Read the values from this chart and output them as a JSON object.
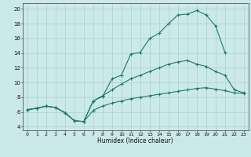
{
  "xlabel": "Humidex (Indice chaleur)",
  "bg_color": "#cce9e9",
  "line_color": "#1a7a6e",
  "xlim": [
    -0.5,
    23.5
  ],
  "ylim": [
    3.5,
    20.8
  ],
  "xticks": [
    0,
    1,
    2,
    3,
    4,
    5,
    6,
    7,
    8,
    9,
    10,
    11,
    12,
    13,
    14,
    15,
    16,
    17,
    18,
    19,
    20,
    21,
    22,
    23
  ],
  "yticks": [
    4,
    6,
    8,
    10,
    12,
    14,
    16,
    18,
    20
  ],
  "curve1_x": [
    0,
    1,
    2,
    3,
    4,
    5,
    6,
    7,
    8,
    9,
    10,
    11,
    12,
    13,
    14,
    15,
    16,
    17,
    18,
    19,
    20,
    21
  ],
  "curve1_y": [
    6.3,
    6.5,
    6.8,
    6.6,
    5.9,
    4.8,
    4.7,
    7.5,
    8.1,
    10.5,
    11.0,
    13.9,
    14.1,
    16.0,
    16.7,
    18.0,
    19.2,
    19.3,
    19.8,
    19.2,
    17.7,
    14.1
  ],
  "curve2_x": [
    0,
    1,
    2,
    3,
    4,
    5,
    6,
    7,
    8,
    9,
    10,
    11,
    12,
    13,
    14,
    15,
    16,
    17,
    18,
    19,
    20,
    21,
    22,
    23
  ],
  "curve2_y": [
    6.3,
    6.5,
    6.8,
    6.6,
    5.9,
    4.8,
    4.7,
    7.5,
    8.2,
    9.0,
    9.8,
    10.5,
    11.0,
    11.5,
    12.0,
    12.5,
    12.8,
    13.0,
    12.5,
    12.2,
    11.5,
    11.0,
    9.0,
    8.6
  ],
  "curve3_x": [
    0,
    1,
    2,
    3,
    4,
    5,
    6,
    7,
    8,
    9,
    10,
    11,
    12,
    13,
    14,
    15,
    16,
    17,
    18,
    19,
    20,
    21,
    22,
    23
  ],
  "curve3_y": [
    6.3,
    6.5,
    6.8,
    6.6,
    5.9,
    4.8,
    4.7,
    6.2,
    6.8,
    7.2,
    7.5,
    7.8,
    8.0,
    8.2,
    8.4,
    8.6,
    8.8,
    9.0,
    9.2,
    9.3,
    9.1,
    8.9,
    8.6,
    8.5
  ]
}
